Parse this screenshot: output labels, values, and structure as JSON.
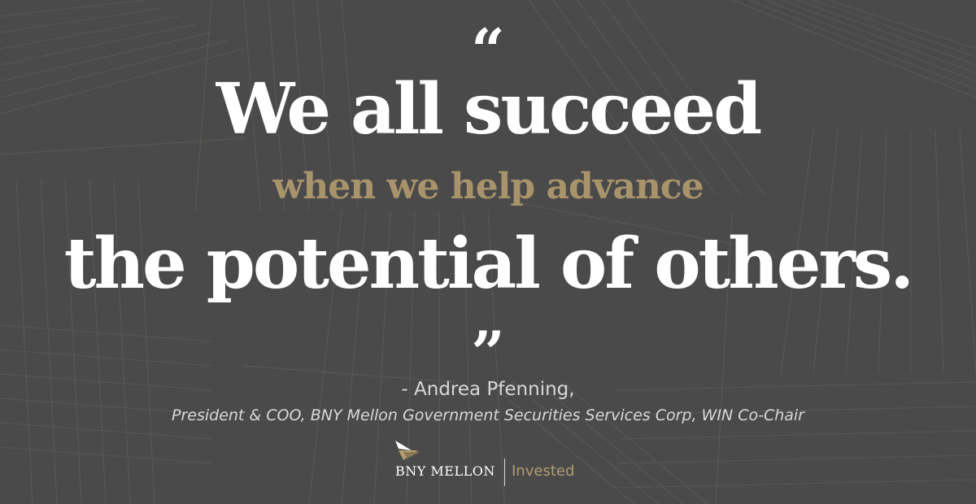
{
  "quote": {
    "open_mark": "“",
    "line1": "We all succeed",
    "line2": "when we help advance",
    "line3": "the potential of others.",
    "close_mark": "”"
  },
  "attribution": {
    "name": "- Andrea Pfenning,",
    "title": "President & COO, BNY Mellon Government Securities Services Corp, WIN Co-Chair"
  },
  "logo": {
    "brand": "BNY MELLON",
    "tagline": "Invested",
    "mark_icon": "bny-mellon-sail-icon"
  },
  "colors": {
    "background": "#4a4a4b",
    "accent_gold": "#a8936a",
    "text_white": "#ffffff",
    "text_light": "#d8d8d8"
  }
}
